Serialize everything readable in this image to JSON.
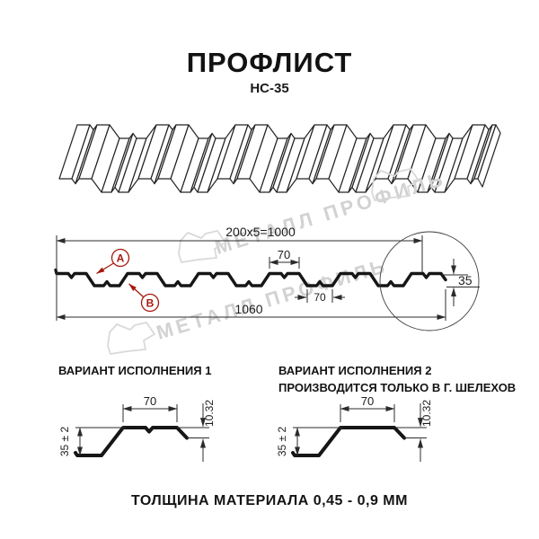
{
  "page": {
    "title": "ПРОФЛИСТ",
    "subtitle": "НС-35",
    "footer": "ТОЛЩИНА МАТЕРИАЛА 0,45 - 0,9 ММ"
  },
  "watermark": {
    "text": "МЕТАЛЛ ПРОФИЛЬ"
  },
  "section_drawing": {
    "dim_total_top": "200x5=1000",
    "dim_rib_top": "70",
    "dim_rib_bottom": "70",
    "dim_overall": "1060",
    "dim_height": "35",
    "label_a": "А",
    "label_b": "В"
  },
  "variant1": {
    "title": "ВАРИАНТ ИСПОЛНЕНИЯ 1",
    "dim_width": "70",
    "dim_edge": "10.32",
    "dim_height": "35 ± 2"
  },
  "variant2": {
    "title": "ВАРИАНТ ИСПОЛНЕНИЯ 2",
    "subtitle": "ПРОИЗВОДИТСЯ ТОЛЬКО В Г. ШЕЛЕХОВ",
    "dim_width": "70",
    "dim_edge": "10.32",
    "dim_height": "35 ± 2"
  },
  "colors": {
    "accent_red": "#a5170e",
    "line": "#1c1c1c",
    "watermark": "#d2d2d2"
  }
}
